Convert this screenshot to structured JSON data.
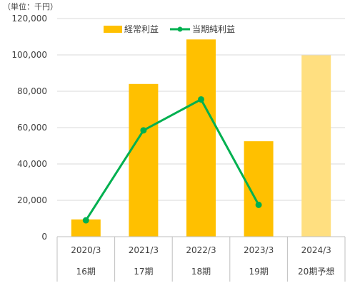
{
  "chart_data": {
    "type": "bar",
    "unit_label": "（単位：千円）",
    "categories": [
      "2020/3",
      "2021/3",
      "2022/3",
      "2023/3",
      "2024/3"
    ],
    "period_labels": [
      "16期",
      "17期",
      "18期",
      "19期",
      "20期予想"
    ],
    "y_ticks": [
      "120,000",
      "100,000",
      "80,000",
      "60,000",
      "40,000",
      "20,000",
      "0"
    ],
    "ylim": [
      0,
      120000
    ],
    "grid": true,
    "legend_position": "top",
    "series": [
      {
        "name": "経常利益",
        "kind": "bar",
        "color": "#FFC000",
        "forecast_color": "#FFDF80",
        "forecast_index": 4,
        "values": [
          9500,
          84000,
          108500,
          52500,
          99800
        ]
      },
      {
        "name": "当期純利益",
        "kind": "line",
        "color": "#00B050",
        "values": [
          9000,
          58500,
          75500,
          17500,
          null
        ]
      }
    ]
  }
}
